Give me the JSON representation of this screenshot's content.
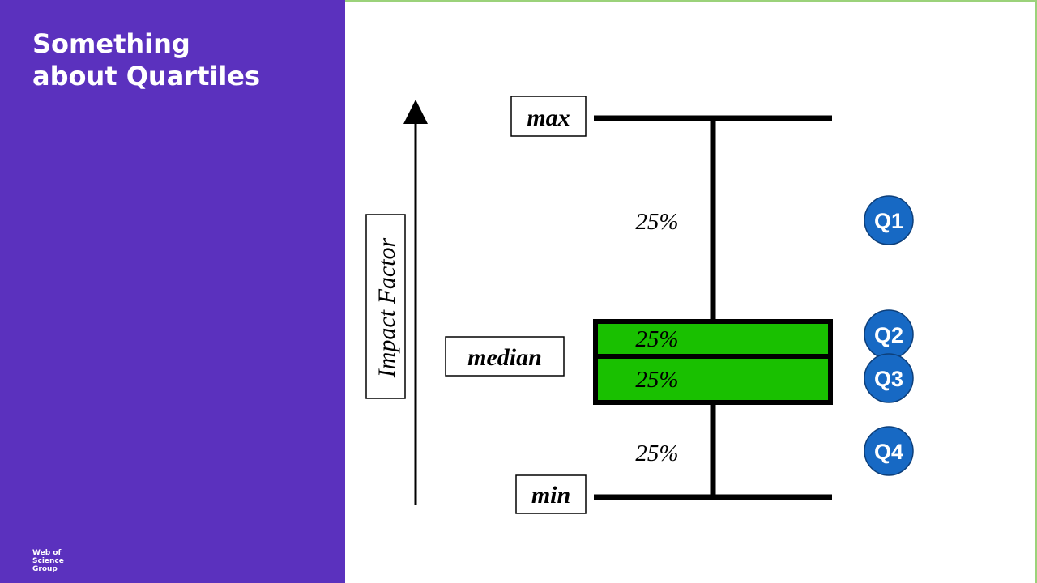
{
  "title": "Something about Quartiles",
  "logo": "Web of Science Group",
  "axis_label": "Impact Factor",
  "labels": {
    "max": "max",
    "median": "median",
    "min": "min"
  },
  "percentages": [
    "25%",
    "25%",
    "25%",
    "25%"
  ],
  "quartiles": [
    "Q1",
    "Q2",
    "Q3",
    "Q4"
  ]
}
